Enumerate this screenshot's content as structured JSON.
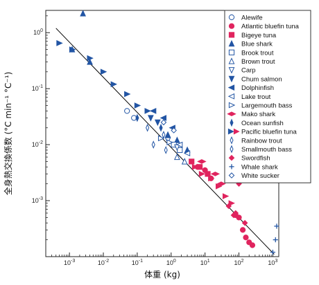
{
  "chart_data": {
    "type": "scatter",
    "xlabel": "体重 (kg)",
    "ylabel": "全身熱交換係数 (°C min⁻¹ °C⁻¹)",
    "xscale": "log",
    "yscale": "log",
    "xlim": [
      0.0002,
      1500
    ],
    "ylim": [
      0.0001,
      2.5
    ],
    "x_ticks": [
      {
        "v": 0.001,
        "base": "10",
        "exp": "-3"
      },
      {
        "v": 0.01,
        "base": "10",
        "exp": "-2"
      },
      {
        "v": 0.1,
        "base": "10",
        "exp": "-1"
      },
      {
        "v": 1,
        "base": "10",
        "exp": "0"
      },
      {
        "v": 10,
        "base": "10",
        "exp": "1"
      },
      {
        "v": 100,
        "base": "10",
        "exp": "2"
      },
      {
        "v": 1000,
        "base": "10",
        "exp": "3"
      }
    ],
    "y_ticks": [
      {
        "v": 0.001,
        "base": "10",
        "exp": "-3"
      },
      {
        "v": 0.01,
        "base": "10",
        "exp": "-2"
      },
      {
        "v": 0.1,
        "base": "10",
        "exp": "-1"
      },
      {
        "v": 1,
        "base": "10",
        "exp": "0"
      }
    ],
    "grid": false,
    "legend_position": "top-right",
    "fit_line": {
      "x": [
        0.0004,
        1100
      ],
      "y": [
        1.2,
        0.00011
      ]
    },
    "series": [
      {
        "name": "Alewife",
        "marker": "circle-open",
        "color": "#2255a4",
        "points": [
          [
            0.05,
            0.04
          ],
          [
            0.08,
            0.03
          ]
        ]
      },
      {
        "name": "Atlantic bluefin tuna",
        "marker": "circle-filled",
        "color": "#e0245e",
        "points": [
          [
            10,
            0.0035
          ],
          [
            15,
            0.0025
          ],
          [
            100,
            0.0005
          ],
          [
            130,
            0.0003
          ],
          [
            160,
            0.00022
          ],
          [
            200,
            0.00018
          ],
          [
            250,
            0.00016
          ],
          [
            80,
            0.00055
          ],
          [
            6,
            0.004
          ]
        ]
      },
      {
        "name": "Bigeye tuna",
        "marker": "square-filled",
        "color": "#e0245e",
        "points": [
          [
            7,
            0.004
          ],
          [
            12,
            0.003
          ],
          [
            4,
            0.005
          ]
        ]
      },
      {
        "name": "Blue shark",
        "marker": "triangle-up-filled",
        "color": "#2255a4",
        "points": [
          [
            0.0025,
            2.2
          ],
          [
            0.0012,
            0.5
          ],
          [
            0.004,
            0.3
          ],
          [
            0.8,
            0.015
          ],
          [
            1.5,
            0.012
          ],
          [
            3,
            0.008
          ]
        ]
      },
      {
        "name": "Brook trout",
        "marker": "square-open",
        "color": "#2255a4",
        "points": [
          [
            1.2,
            0.01
          ],
          [
            1.8,
            0.008
          ]
        ]
      },
      {
        "name": "Brown trout",
        "marker": "triangle-up-open",
        "color": "#2255a4",
        "points": [
          [
            1.5,
            0.006
          ],
          [
            2.5,
            0.005
          ]
        ]
      },
      {
        "name": "Carp",
        "marker": "triangle-down-open",
        "color": "#2255a4",
        "points": [
          [
            0.8,
            0.012
          ],
          [
            1.5,
            0.009
          ]
        ]
      },
      {
        "name": "Chum salmon",
        "marker": "triangle-down-filled",
        "color": "#2255a4",
        "points": [
          [
            0.25,
            0.03
          ],
          [
            0.4,
            0.025
          ]
        ]
      },
      {
        "name": "Dolphinfish",
        "marker": "triangle-left-filled",
        "color": "#2255a4",
        "points": [
          [
            0.3,
            0.04
          ],
          [
            0.6,
            0.03
          ],
          [
            1.1,
            0.02
          ]
        ]
      },
      {
        "name": "Lake trout",
        "marker": "triangle-left-open",
        "color": "#2255a4",
        "points": [
          [
            1.8,
            0.01
          ],
          [
            3,
            0.007
          ]
        ]
      },
      {
        "name": "Largemouth bass",
        "marker": "triangle-right-open",
        "color": "#2255a4",
        "points": [
          [
            0.5,
            0.013
          ],
          [
            0.9,
            0.011
          ]
        ]
      },
      {
        "name": "Mako shark",
        "marker": "diamond-wide-filled",
        "color": "#e0245e",
        "points": [
          [
            8,
            0.005
          ],
          [
            20,
            0.003
          ],
          [
            30,
            0.002
          ]
        ]
      },
      {
        "name": "Ocean sunfish",
        "marker": "diamond-thin-filled",
        "color": "#2255a4",
        "points": [
          [
            0.1,
            0.03
          ],
          [
            0.5,
            0.02
          ]
        ]
      },
      {
        "name": "Pacific bluefin tuna",
        "marker": "triangle-right-filled-pair",
        "color": "#2255a4",
        "color2": "#e0245e",
        "points": [
          [
            0.0005,
            0.65
          ],
          [
            0.0012,
            0.5
          ],
          [
            0.004,
            0.35
          ],
          [
            0.01,
            0.2
          ],
          [
            0.02,
            0.12
          ],
          [
            0.05,
            0.08
          ],
          [
            0.1,
            0.05
          ],
          [
            0.2,
            0.04
          ]
        ],
        "points2": [
          [
            5,
            0.004
          ],
          [
            8,
            0.003
          ],
          [
            15,
            0.0025
          ],
          [
            25,
            0.0018
          ],
          [
            40,
            0.0012
          ],
          [
            60,
            0.0009
          ]
        ]
      },
      {
        "name": "Rainbow trout",
        "marker": "diamond-thin-open",
        "color": "#2255a4",
        "points": [
          [
            0.2,
            0.02
          ],
          [
            0.6,
            0.015
          ]
        ]
      },
      {
        "name": "Smallmouth bass",
        "marker": "diamond-thin-open",
        "color": "#2255a4",
        "points": [
          [
            0.3,
            0.01
          ],
          [
            0.7,
            0.008
          ]
        ]
      },
      {
        "name": "Swordfish",
        "marker": "diamond-filled",
        "color": "#e0245e",
        "points": [
          [
            50,
            0.0008
          ],
          [
            80,
            0.0006
          ],
          [
            100,
            0.002
          ],
          [
            150,
            0.0004
          ],
          [
            70,
            0.00055
          ]
        ]
      },
      {
        "name": "Whale shark",
        "marker": "plus",
        "color": "#2255a4",
        "points": [
          [
            1000,
            0.00012
          ],
          [
            1200,
            0.0002
          ],
          [
            1300,
            0.00035
          ]
        ]
      },
      {
        "name": "White sucker",
        "marker": "diamond-open",
        "color": "#2255a4",
        "points": [
          [
            0.6,
            0.025
          ],
          [
            1.2,
            0.018
          ]
        ]
      }
    ]
  }
}
